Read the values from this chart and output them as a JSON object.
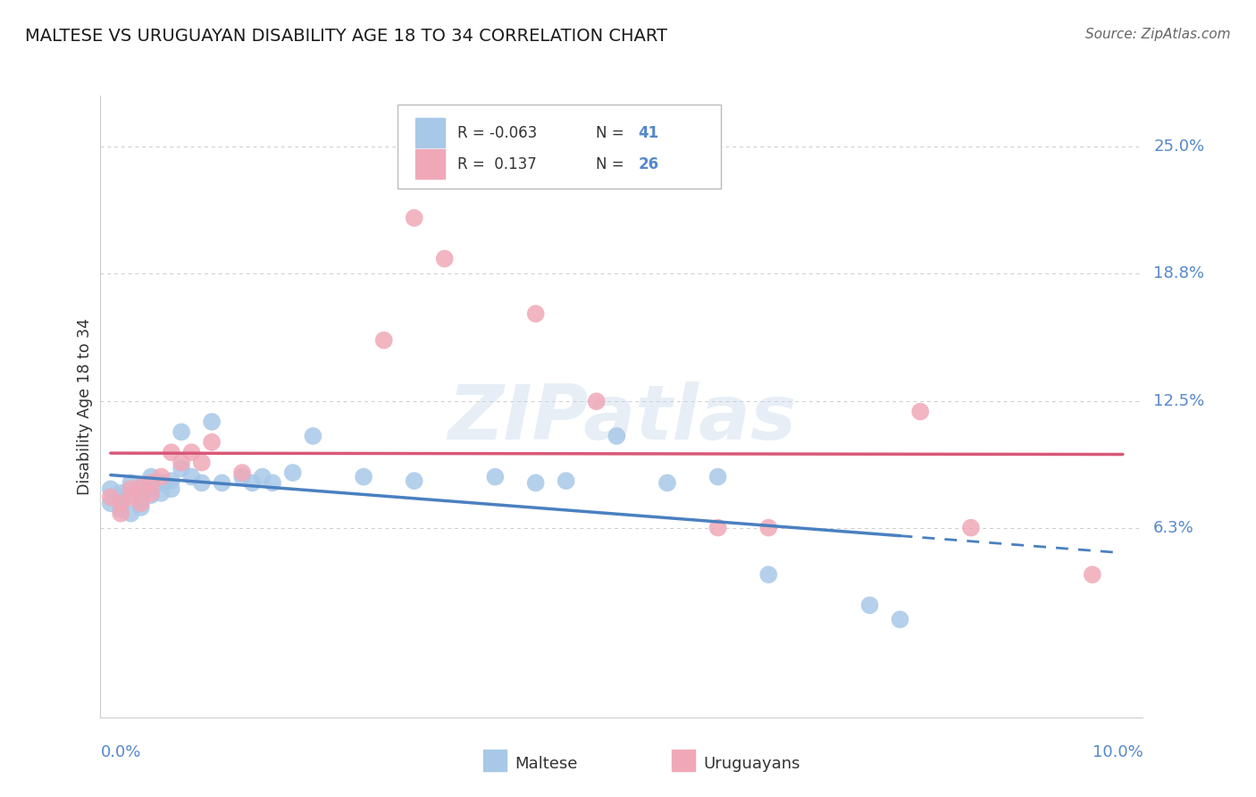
{
  "title": "MALTESE VS URUGUAYAN DISABILITY AGE 18 TO 34 CORRELATION CHART",
  "source": "Source: ZipAtlas.com",
  "ylabel": "Disability Age 18 to 34",
  "ytick_labels": [
    "6.3%",
    "12.5%",
    "18.8%",
    "25.0%"
  ],
  "ytick_values": [
    0.063,
    0.125,
    0.188,
    0.25
  ],
  "xlim": [
    -0.001,
    0.102
  ],
  "ylim": [
    -0.03,
    0.275
  ],
  "xmin_label": "0.0%",
  "xmax_label": "10.0%",
  "legend_blue_r": "-0.063",
  "legend_blue_n": "41",
  "legend_pink_r": "0.137",
  "legend_pink_n": "26",
  "blue_color": "#a8c8e8",
  "blue_line_color": "#4a80c0",
  "pink_color": "#f0a8b8",
  "pink_line_color": "#d85878",
  "watermark": "ZIPatlas",
  "background_color": "#ffffff",
  "grid_color": "#cccccc",
  "blue_scatter": [
    [
      0.0,
      0.082
    ],
    [
      0.0,
      0.075
    ],
    [
      0.001,
      0.08
    ],
    [
      0.001,
      0.078
    ],
    [
      0.001,
      0.072
    ],
    [
      0.002,
      0.085
    ],
    [
      0.002,
      0.079
    ],
    [
      0.002,
      0.07
    ],
    [
      0.003,
      0.083
    ],
    [
      0.003,
      0.077
    ],
    [
      0.003,
      0.073
    ],
    [
      0.004,
      0.088
    ],
    [
      0.004,
      0.082
    ],
    [
      0.004,
      0.079
    ],
    [
      0.005,
      0.085
    ],
    [
      0.005,
      0.08
    ],
    [
      0.006,
      0.086
    ],
    [
      0.006,
      0.082
    ],
    [
      0.007,
      0.11
    ],
    [
      0.007,
      0.092
    ],
    [
      0.008,
      0.088
    ],
    [
      0.009,
      0.085
    ],
    [
      0.01,
      0.115
    ],
    [
      0.011,
      0.085
    ],
    [
      0.013,
      0.088
    ],
    [
      0.014,
      0.085
    ],
    [
      0.015,
      0.088
    ],
    [
      0.016,
      0.085
    ],
    [
      0.018,
      0.09
    ],
    [
      0.02,
      0.108
    ],
    [
      0.025,
      0.088
    ],
    [
      0.03,
      0.086
    ],
    [
      0.038,
      0.088
    ],
    [
      0.042,
      0.085
    ],
    [
      0.045,
      0.086
    ],
    [
      0.05,
      0.108
    ],
    [
      0.055,
      0.085
    ],
    [
      0.06,
      0.088
    ],
    [
      0.065,
      0.04
    ],
    [
      0.075,
      0.025
    ],
    [
      0.078,
      0.018
    ]
  ],
  "pink_scatter": [
    [
      0.0,
      0.078
    ],
    [
      0.001,
      0.075
    ],
    [
      0.001,
      0.07
    ],
    [
      0.002,
      0.082
    ],
    [
      0.002,
      0.078
    ],
    [
      0.003,
      0.083
    ],
    [
      0.003,
      0.075
    ],
    [
      0.004,
      0.085
    ],
    [
      0.004,
      0.08
    ],
    [
      0.005,
      0.088
    ],
    [
      0.006,
      0.1
    ],
    [
      0.007,
      0.095
    ],
    [
      0.008,
      0.1
    ],
    [
      0.009,
      0.095
    ],
    [
      0.01,
      0.105
    ],
    [
      0.013,
      0.09
    ],
    [
      0.027,
      0.155
    ],
    [
      0.03,
      0.215
    ],
    [
      0.033,
      0.195
    ],
    [
      0.042,
      0.168
    ],
    [
      0.048,
      0.125
    ],
    [
      0.06,
      0.063
    ],
    [
      0.065,
      0.063
    ],
    [
      0.08,
      0.12
    ],
    [
      0.085,
      0.063
    ],
    [
      0.097,
      0.04
    ]
  ]
}
